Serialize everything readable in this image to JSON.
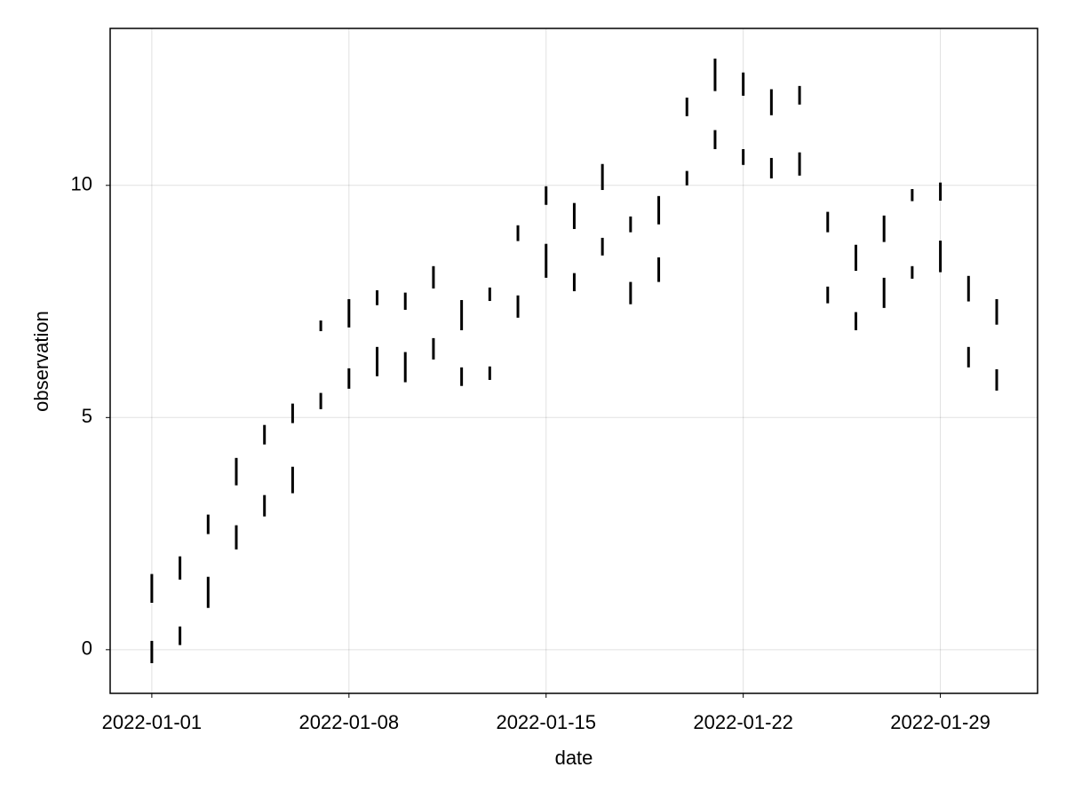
{
  "chart_data": {
    "type": "rangebars",
    "xlabel": "date",
    "ylabel": "observation",
    "x": [
      "2022-01-01",
      "2022-01-02",
      "2022-01-03",
      "2022-01-04",
      "2022-01-05",
      "2022-01-06",
      "2022-01-07",
      "2022-01-08",
      "2022-01-09",
      "2022-01-10",
      "2022-01-11",
      "2022-01-12",
      "2022-01-13",
      "2022-01-14",
      "2022-01-15",
      "2022-01-16",
      "2022-01-17",
      "2022-01-18",
      "2022-01-19",
      "2022-01-20",
      "2022-01-21",
      "2022-01-22",
      "2022-01-23",
      "2022-01-24",
      "2022-01-25",
      "2022-01-26",
      "2022-01-27",
      "2022-01-28",
      "2022-01-29",
      "2022-01-30",
      "2022-01-31"
    ],
    "series": [
      {
        "color": "#000000",
        "low": [
          1.01,
          1.51,
          2.49,
          3.54,
          4.42,
          4.88,
          6.86,
          6.94,
          7.42,
          7.32,
          7.78,
          6.88,
          7.51,
          8.8,
          9.58,
          9.06,
          9.9,
          8.99,
          9.16,
          11.49,
          12.03,
          11.93,
          11.51,
          11.74,
          8.99,
          8.16,
          8.78,
          9.66,
          9.67,
          7.5,
          7.0
        ],
        "high": [
          1.63,
          2.01,
          2.91,
          4.13,
          4.84,
          5.3,
          7.09,
          7.55,
          7.74,
          7.69,
          8.26,
          7.53,
          7.8,
          9.14,
          9.98,
          9.62,
          10.46,
          9.33,
          9.77,
          11.89,
          12.73,
          12.43,
          12.07,
          12.14,
          9.43,
          8.72,
          9.35,
          9.92,
          10.06,
          8.05,
          7.55
        ]
      },
      {
        "color": "#000000",
        "low": [
          -0.29,
          0.1,
          0.9,
          2.16,
          2.87,
          3.37,
          5.18,
          5.62,
          5.89,
          5.76,
          6.25,
          5.68,
          5.81,
          7.15,
          8.01,
          7.72,
          8.49,
          7.44,
          7.92,
          10.0,
          10.78,
          10.44,
          10.15,
          10.21,
          7.46,
          6.88,
          7.36,
          7.99,
          8.13,
          6.08,
          5.58
        ],
        "high": [
          0.19,
          0.5,
          1.57,
          2.68,
          3.33,
          3.94,
          5.53,
          6.06,
          6.52,
          6.41,
          6.71,
          6.08,
          6.1,
          7.63,
          8.74,
          8.11,
          8.87,
          7.92,
          8.45,
          10.31,
          11.19,
          10.78,
          10.59,
          10.71,
          7.82,
          7.27,
          8.01,
          8.26,
          8.81,
          6.52,
          6.04
        ]
      }
    ],
    "xlim": [
      "2021-12-30T12:30",
      "2022-02-01T10:50"
    ],
    "xticks": [
      "2022-01-01",
      "2022-01-08",
      "2022-01-15",
      "2022-01-22",
      "2022-01-29"
    ],
    "ylim": [
      -0.94,
      13.38
    ],
    "yticks": [
      0,
      5,
      10
    ],
    "grid": true
  }
}
